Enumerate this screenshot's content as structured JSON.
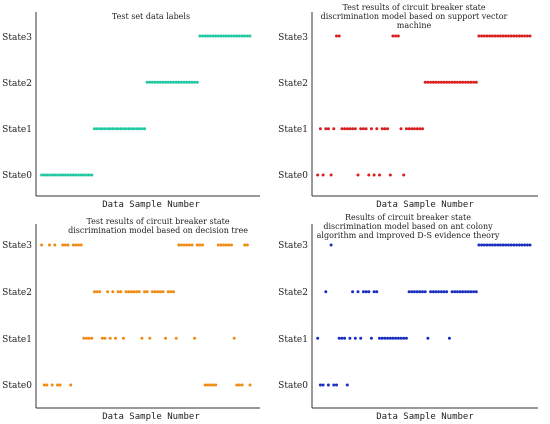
{
  "chart_data": [
    {
      "type": "scatter",
      "title": "Test set data labels",
      "xlabel": "Data Sample Number",
      "ylabel": "",
      "categories": [
        "State0",
        "State1",
        "State2",
        "State3"
      ],
      "xlim": [
        0,
        80
      ],
      "ylim": [
        0,
        3
      ],
      "color": "#1fc8a0",
      "series": [
        {
          "x": [
            1,
            2,
            3,
            4,
            5,
            6,
            7,
            8,
            9,
            10,
            11,
            12,
            13,
            14,
            15,
            16,
            17,
            18,
            19,
            20,
            21,
            22,
            23,
            24,
            25,
            26,
            27,
            28,
            29,
            30,
            31,
            32,
            33,
            34,
            35,
            36,
            37,
            38,
            39,
            40,
            41,
            42,
            43,
            44,
            45,
            46,
            47,
            48,
            49,
            50,
            51,
            52,
            53,
            54,
            55,
            56,
            57,
            58,
            59,
            60,
            61,
            62,
            63,
            64,
            65,
            66,
            67,
            68,
            69,
            70,
            71,
            72,
            73,
            74,
            75,
            76,
            77,
            78,
            79,
            80
          ],
          "y": [
            0,
            0,
            0,
            0,
            0,
            0,
            0,
            0,
            0,
            0,
            0,
            0,
            0,
            0,
            0,
            0,
            0,
            0,
            0,
            0,
            1,
            1,
            1,
            1,
            1,
            1,
            1,
            1,
            1,
            1,
            1,
            1,
            1,
            1,
            1,
            1,
            1,
            1,
            1,
            1,
            2,
            2,
            2,
            2,
            2,
            2,
            2,
            2,
            2,
            2,
            2,
            2,
            2,
            2,
            2,
            2,
            2,
            2,
            2,
            2,
            3,
            3,
            3,
            3,
            3,
            3,
            3,
            3,
            3,
            3,
            3,
            3,
            3,
            3,
            3,
            3,
            3,
            3,
            3,
            3
          ]
        }
      ]
    },
    {
      "type": "scatter",
      "title": "Test results of circuit breaker state discrimination model based on support vector machine",
      "xlabel": "Data Sample Number",
      "ylabel": "",
      "categories": [
        "State0",
        "State1",
        "State2",
        "State3"
      ],
      "xlim": [
        0,
        80
      ],
      "ylim": [
        0,
        3
      ],
      "color": "#d81e1e",
      "series": [
        {
          "x": [
            1,
            2,
            3,
            4,
            5,
            6,
            7,
            8,
            9,
            10,
            11,
            12,
            13,
            14,
            15,
            16,
            17,
            18,
            19,
            20,
            21,
            22,
            23,
            24,
            25,
            26,
            27,
            28,
            29,
            30,
            31,
            32,
            33,
            34,
            35,
            36,
            37,
            38,
            39,
            40,
            41,
            42,
            43,
            44,
            45,
            46,
            47,
            48,
            49,
            50,
            51,
            52,
            53,
            54,
            55,
            56,
            57,
            58,
            59,
            60,
            61,
            62,
            63,
            64,
            65,
            66,
            67,
            68,
            69,
            70,
            71,
            72,
            73,
            74,
            75,
            76,
            77,
            78,
            79,
            80
          ],
          "y": [
            0,
            1,
            0,
            1,
            1,
            0,
            1,
            3,
            3,
            1,
            1,
            1,
            1,
            1,
            1,
            0,
            1,
            1,
            1,
            0,
            1,
            0,
            1,
            0,
            1,
            1,
            1,
            0,
            3,
            3,
            3,
            1,
            0,
            1,
            1,
            1,
            1,
            1,
            1,
            1,
            2,
            2,
            2,
            2,
            2,
            2,
            2,
            2,
            2,
            2,
            2,
            2,
            2,
            2,
            2,
            2,
            2,
            2,
            2,
            2,
            3,
            3,
            3,
            3,
            3,
            3,
            3,
            3,
            3,
            3,
            3,
            3,
            3,
            3,
            3,
            3,
            3,
            3,
            3,
            3
          ]
        }
      ]
    },
    {
      "type": "scatter",
      "title": "Test results of circuit breaker state discrimination model based on decision tree",
      "xlabel": "Data Sample Number",
      "ylabel": "",
      "categories": [
        "State0",
        "State1",
        "State2",
        "State3"
      ],
      "xlim": [
        0,
        80
      ],
      "ylim": [
        0,
        3
      ],
      "color": "#f08c14",
      "series": [
        {
          "x": [
            1,
            2,
            3,
            4,
            5,
            6,
            7,
            8,
            9,
            10,
            11,
            12,
            13,
            14,
            15,
            16,
            17,
            18,
            19,
            20,
            21,
            22,
            23,
            24,
            25,
            26,
            27,
            28,
            29,
            30,
            31,
            32,
            33,
            34,
            35,
            36,
            37,
            38,
            39,
            40,
            41,
            42,
            43,
            44,
            45,
            46,
            47,
            48,
            49,
            50,
            51,
            52,
            53,
            54,
            55,
            56,
            57,
            58,
            59,
            60,
            61,
            62,
            63,
            64,
            65,
            66,
            67,
            68,
            69,
            70,
            71,
            72,
            73,
            74,
            75,
            76,
            77,
            78,
            79,
            80
          ],
          "y": [
            3,
            0,
            0,
            3,
            0,
            3,
            0,
            0,
            3,
            3,
            3,
            0,
            3,
            3,
            3,
            3,
            1,
            1,
            1,
            1,
            2,
            2,
            2,
            1,
            1,
            2,
            1,
            2,
            1,
            2,
            2,
            1,
            2,
            2,
            2,
            2,
            2,
            2,
            1,
            2,
            2,
            1,
            2,
            2,
            2,
            2,
            2,
            1,
            2,
            2,
            2,
            1,
            3,
            3,
            3,
            3,
            3,
            3,
            1,
            3,
            3,
            3,
            0,
            0,
            0,
            0,
            0,
            3,
            3,
            3,
            3,
            3,
            3,
            1,
            0,
            0,
            0,
            3,
            3,
            0
          ]
        }
      ]
    },
    {
      "type": "scatter",
      "title": "Results of circuit breaker state discrimination model based on ant colony algorithm and improved D-S evidence theory",
      "xlabel": "Data Sample Number",
      "ylabel": "",
      "categories": [
        "State0",
        "State1",
        "State2",
        "State3"
      ],
      "xlim": [
        0,
        80
      ],
      "ylim": [
        0,
        3
      ],
      "color": "#1a2ec0",
      "series": [
        {
          "x": [
            1,
            2,
            3,
            4,
            5,
            6,
            7,
            8,
            9,
            10,
            11,
            12,
            13,
            14,
            15,
            16,
            17,
            18,
            19,
            20,
            21,
            22,
            23,
            24,
            25,
            26,
            27,
            28,
            29,
            30,
            31,
            32,
            33,
            34,
            35,
            36,
            37,
            38,
            39,
            40,
            41,
            42,
            43,
            44,
            45,
            46,
            47,
            48,
            49,
            50,
            51,
            52,
            53,
            54,
            55,
            56,
            57,
            58,
            59,
            60,
            61,
            62,
            63,
            64,
            65,
            66,
            67,
            68,
            69,
            70,
            71,
            72,
            73,
            74,
            75,
            76,
            77,
            78,
            79,
            80
          ],
          "y": [
            1,
            0,
            0,
            2,
            0,
            3,
            0,
            0,
            1,
            1,
            1,
            0,
            1,
            2,
            1,
            2,
            1,
            2,
            2,
            2,
            1,
            2,
            2,
            1,
            1,
            1,
            1,
            1,
            1,
            1,
            1,
            1,
            1,
            1,
            2,
            2,
            2,
            2,
            2,
            2,
            2,
            1,
            2,
            2,
            2,
            2,
            2,
            2,
            2,
            1,
            2,
            2,
            2,
            2,
            2,
            2,
            2,
            2,
            2,
            2,
            3,
            3,
            3,
            3,
            3,
            3,
            3,
            3,
            3,
            3,
            3,
            3,
            3,
            3,
            3,
            3,
            3,
            3,
            3,
            3
          ]
        }
      ]
    }
  ]
}
